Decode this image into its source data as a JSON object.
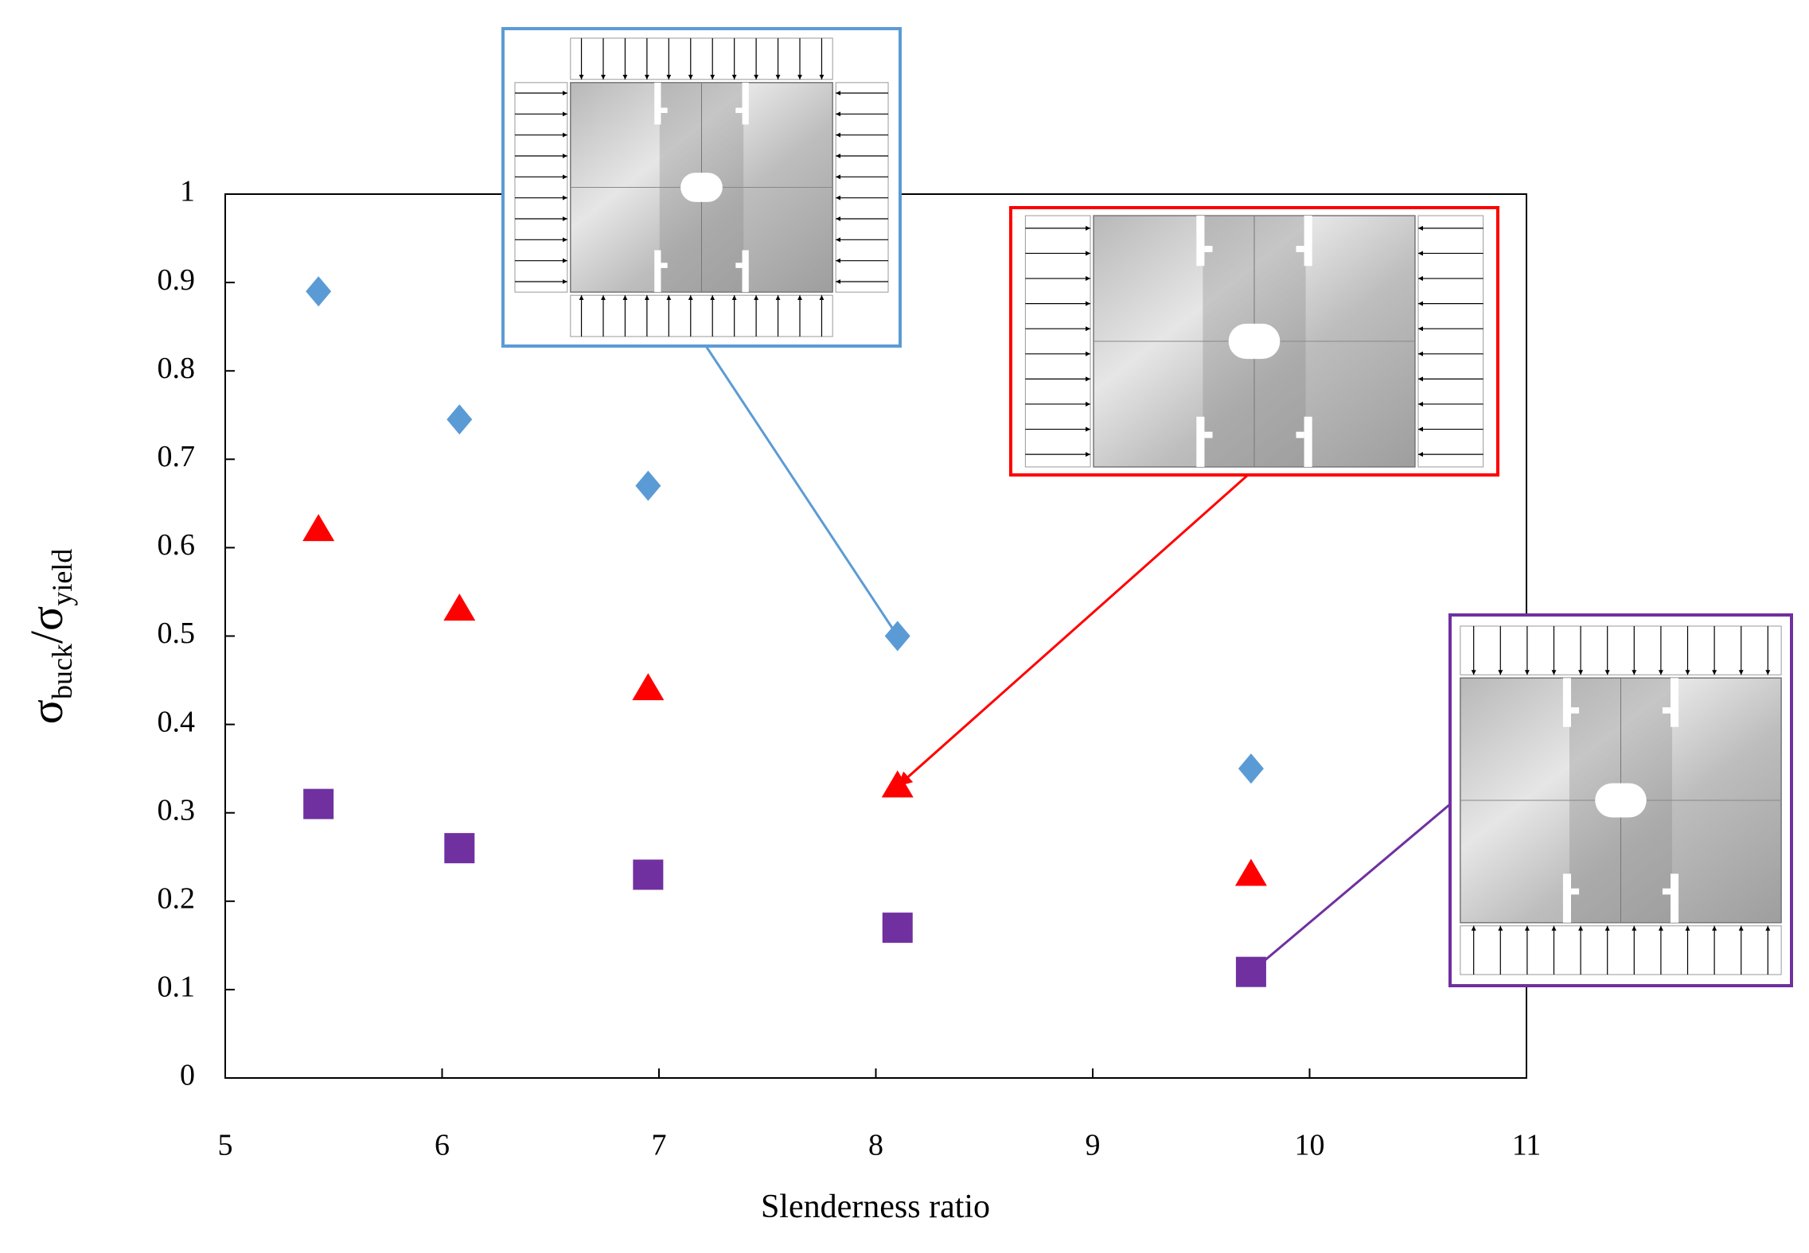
{
  "chart_data": {
    "type": "scatter",
    "xlabel": "Slenderness ratio",
    "ylabel": [
      "σ",
      "buck",
      "/σ",
      "yield"
    ],
    "x": [
      5.43,
      6.08,
      6.95,
      8.1,
      9.73
    ],
    "series": [
      {
        "color": "#5b9bd5",
        "marker": "diamond",
        "values": [
          0.89,
          0.745,
          0.67,
          0.5,
          0.35
        ]
      },
      {
        "color": "#ff0000",
        "marker": "triangle",
        "values": [
          0.62,
          0.53,
          0.44,
          0.33,
          0.23
        ]
      },
      {
        "color": "#7030a0",
        "marker": "square",
        "values": [
          0.31,
          0.26,
          0.23,
          0.17,
          0.12
        ]
      }
    ],
    "xlim": [
      5,
      11
    ],
    "xticks": [
      5,
      6,
      7,
      8,
      9,
      10,
      11
    ],
    "ylim": [
      0,
      1
    ],
    "yticks": [
      0,
      0.1,
      0.2,
      0.3,
      0.4,
      0.5,
      0.6,
      0.7,
      0.8,
      0.9,
      1
    ],
    "grid": false
  }
}
